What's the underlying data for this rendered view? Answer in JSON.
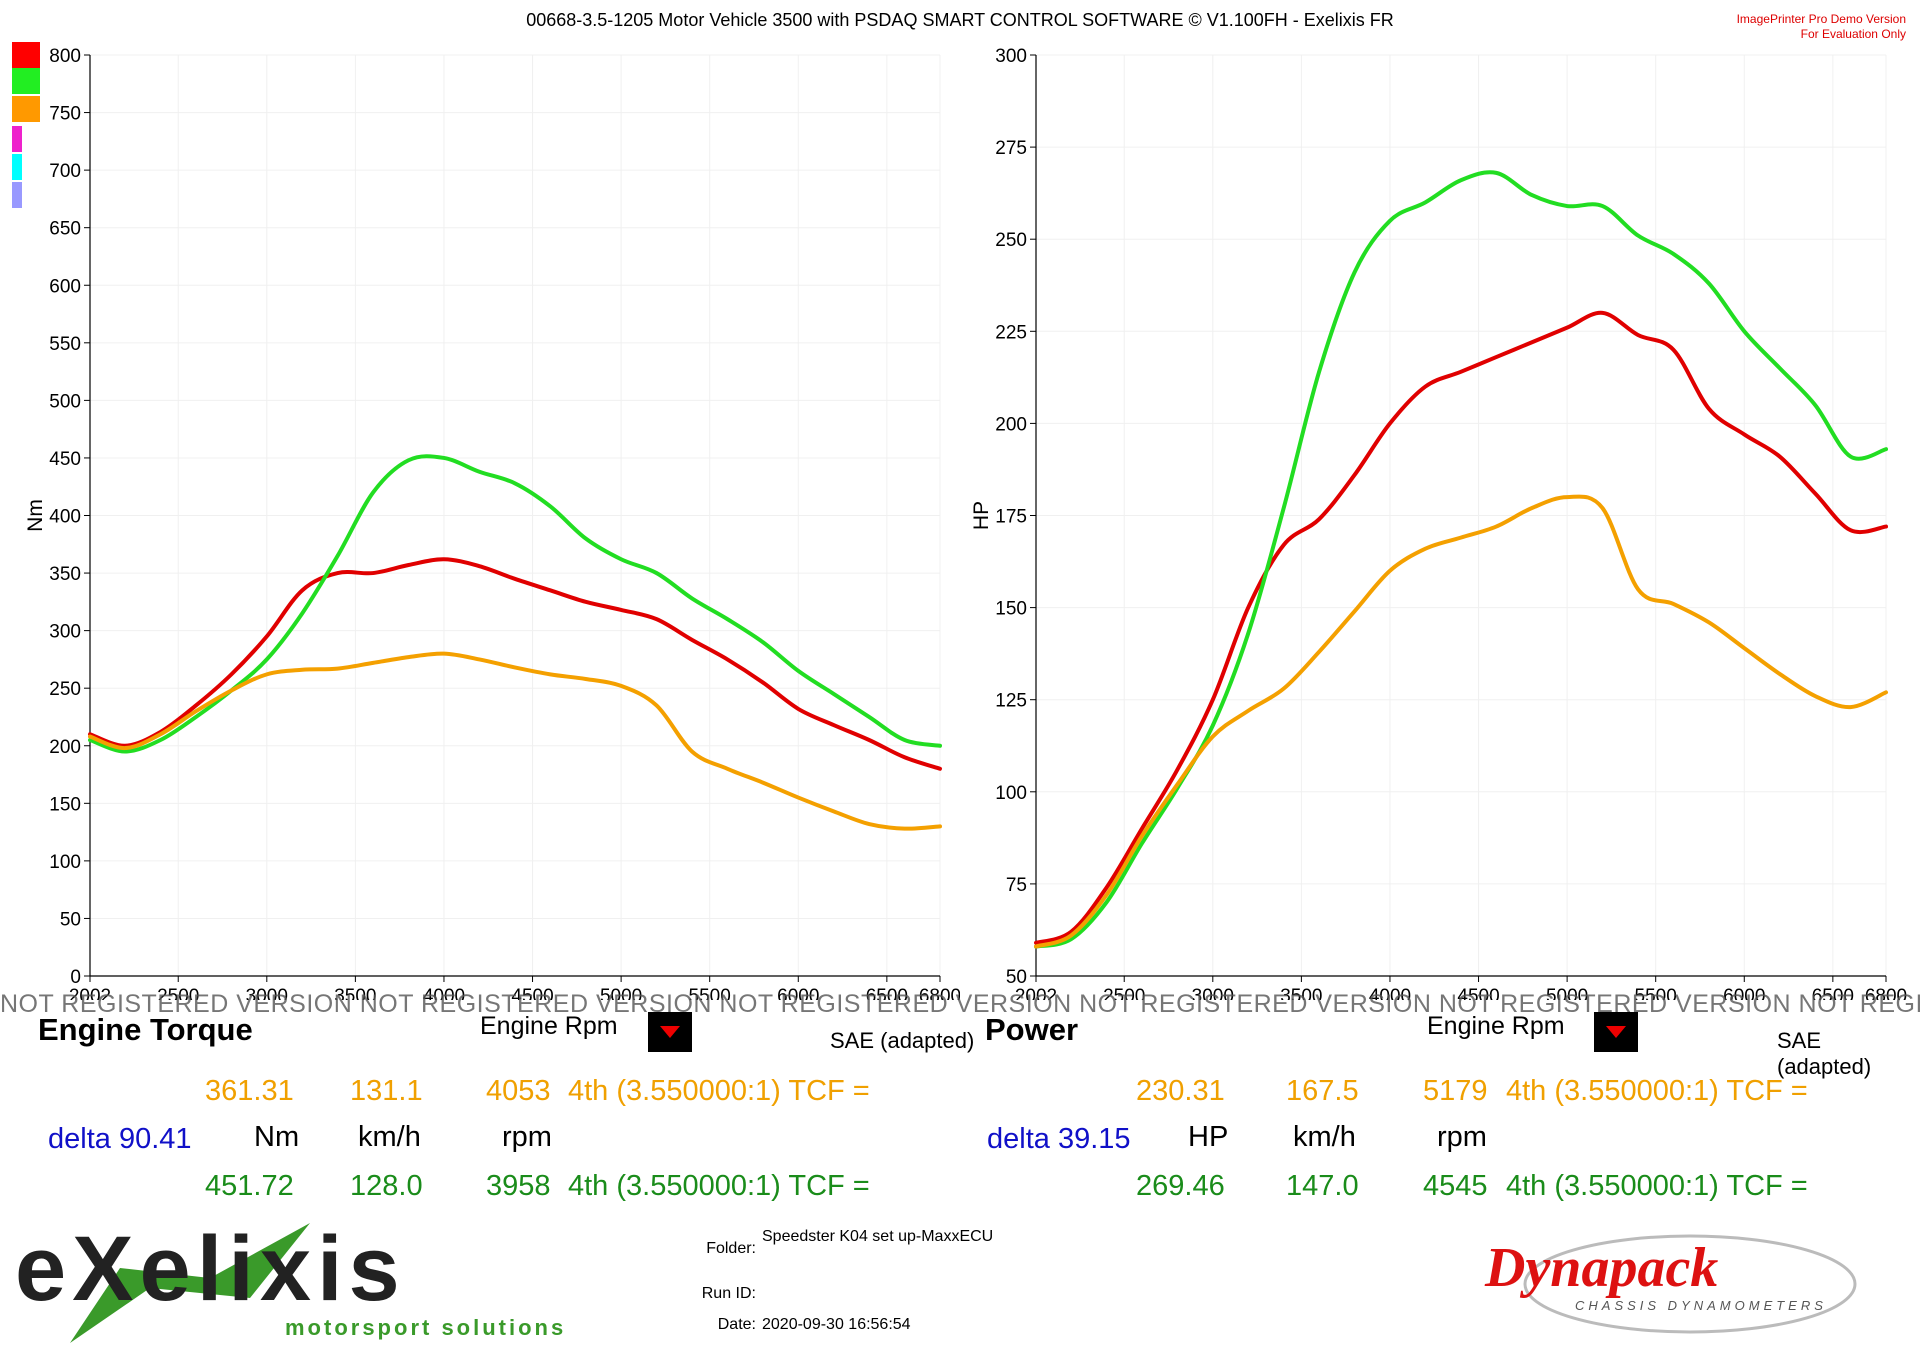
{
  "header": {
    "title": "00668-3.5-1205 Motor Vehicle 3500 with PSDAQ SMART CONTROL SOFTWARE © V1.100FH - Exelixis FR",
    "demo_line1": "ImagePrinter Pro Demo Version",
    "demo_line2": "For Evaluation Only"
  },
  "legend_colors": [
    "#ff0000",
    "#22ee22",
    "#ff9900",
    "#ee22cc",
    "#00ffff",
    "#9999ff"
  ],
  "watermark": "NOT REGISTERED VERSION NOT REGISTERED VERSION NOT REGISTERED VERSION NOT REGISTERED VERSION NOT REGISTERED VERSION NOT REGISTERED VERSION NOT REGISTERED V",
  "chart_data": [
    {
      "type": "line",
      "title": "Engine Torque",
      "xlabel": "Engine Rpm",
      "ylabel": "Nm",
      "xlim": [
        2002,
        6800
      ],
      "ylim": [
        0,
        800
      ],
      "x_ticks": [
        "2002",
        "2500",
        "3000",
        "3500",
        "4000",
        "4500",
        "5000",
        "5500",
        "6000",
        "6500",
        "6800"
      ],
      "x_tick_values": [
        2002,
        2500,
        3000,
        3500,
        4000,
        4500,
        5000,
        5500,
        6000,
        6500,
        6800
      ],
      "y_ticks": [
        0,
        50,
        100,
        150,
        200,
        250,
        300,
        350,
        400,
        450,
        500,
        550,
        600,
        650,
        700,
        750,
        800
      ],
      "grid": true,
      "series": [
        {
          "color": "#e00000",
          "x": [
            2002,
            2200,
            2400,
            2600,
            2800,
            3000,
            3200,
            3400,
            3600,
            3800,
            4000,
            4200,
            4400,
            4600,
            4800,
            5000,
            5200,
            5400,
            5600,
            5800,
            6000,
            6200,
            6400,
            6600,
            6800
          ],
          "values": [
            210,
            200,
            212,
            235,
            262,
            295,
            335,
            350,
            350,
            357,
            362,
            356,
            345,
            335,
            325,
            318,
            310,
            292,
            275,
            255,
            232,
            218,
            205,
            190,
            180
          ]
        },
        {
          "color": "#22dd22",
          "x": [
            2002,
            2200,
            2400,
            2600,
            2800,
            3000,
            3200,
            3400,
            3600,
            3800,
            4000,
            4200,
            4400,
            4600,
            4800,
            5000,
            5200,
            5400,
            5600,
            5800,
            6000,
            6200,
            6400,
            6600,
            6800
          ],
          "values": [
            205,
            195,
            205,
            225,
            248,
            275,
            315,
            365,
            420,
            448,
            450,
            438,
            428,
            408,
            380,
            362,
            350,
            328,
            310,
            290,
            265,
            245,
            225,
            205,
            200
          ]
        },
        {
          "color": "#f4a000",
          "x": [
            2002,
            2200,
            2400,
            2600,
            2800,
            3000,
            3200,
            3400,
            3600,
            3800,
            4000,
            4200,
            4400,
            4600,
            4800,
            5000,
            5200,
            5400,
            5600,
            5800,
            6000,
            6200,
            6400,
            6600,
            6800
          ],
          "values": [
            208,
            198,
            210,
            230,
            248,
            262,
            266,
            267,
            272,
            277,
            280,
            275,
            268,
            262,
            258,
            252,
            235,
            195,
            180,
            168,
            155,
            143,
            132,
            128,
            130
          ]
        }
      ],
      "readout": {
        "orange": {
          "value": "361.31",
          "speed": "131.1",
          "rpm": "4053",
          "gear": "4th (3.550000:1) TCF ="
        },
        "units": {
          "value": "Nm",
          "speed": "km/h",
          "rpm": "rpm"
        },
        "delta": "delta 90.41",
        "green": {
          "value": "451.72",
          "speed": "128.0",
          "rpm": "3958",
          "gear": "4th (3.550000:1) TCF ="
        },
        "sae": "SAE (adapted)"
      }
    },
    {
      "type": "line",
      "title": "Power",
      "xlabel": "Engine Rpm",
      "ylabel": "HP",
      "xlim": [
        2002,
        6800
      ],
      "ylim": [
        50,
        300
      ],
      "x_ticks": [
        "2002",
        "2500",
        "3000",
        "3500",
        "4000",
        "4500",
        "5000",
        "5500",
        "6000",
        "6500",
        "6800"
      ],
      "x_tick_values": [
        2002,
        2500,
        3000,
        3500,
        4000,
        4500,
        5000,
        5500,
        6000,
        6500,
        6800
      ],
      "y_ticks": [
        50,
        75,
        100,
        125,
        150,
        175,
        200,
        225,
        250,
        275,
        300
      ],
      "grid": true,
      "series": [
        {
          "color": "#e00000",
          "x": [
            2002,
            2200,
            2400,
            2600,
            2800,
            3000,
            3200,
            3400,
            3600,
            3800,
            4000,
            4200,
            4400,
            4600,
            4800,
            5000,
            5200,
            5400,
            5600,
            5800,
            6000,
            6200,
            6400,
            6600,
            6800
          ],
          "values": [
            59,
            62,
            74,
            90,
            106,
            125,
            150,
            167,
            174,
            186,
            200,
            210,
            214,
            218,
            222,
            226,
            230,
            224,
            220,
            204,
            197,
            191,
            181,
            171,
            172
          ]
        },
        {
          "color": "#22dd22",
          "x": [
            2002,
            2200,
            2400,
            2600,
            2800,
            3000,
            3200,
            3400,
            3600,
            3800,
            4000,
            4200,
            4400,
            4600,
            4800,
            5000,
            5200,
            5400,
            5600,
            5800,
            6000,
            6200,
            6400,
            6600,
            6800
          ],
          "values": [
            58,
            60,
            70,
            86,
            101,
            118,
            143,
            177,
            214,
            241,
            255,
            260,
            266,
            268,
            262,
            259,
            259,
            251,
            246,
            238,
            225,
            215,
            205,
            191,
            193
          ]
        },
        {
          "color": "#f4a000",
          "x": [
            2002,
            2200,
            2400,
            2600,
            2800,
            3000,
            3200,
            3400,
            3600,
            3800,
            4000,
            4200,
            4400,
            4600,
            4800,
            5000,
            5200,
            5400,
            5600,
            5800,
            6000,
            6200,
            6400,
            6600,
            6800
          ],
          "values": [
            58,
            61,
            72,
            88,
            102,
            115,
            122,
            128,
            138,
            149,
            160,
            166,
            169,
            172,
            177,
            180,
            177,
            155,
            151,
            146,
            139,
            132,
            126,
            123,
            127
          ]
        }
      ],
      "readout": {
        "orange": {
          "value": "230.31",
          "speed": "167.5",
          "rpm": "5179",
          "gear": "4th (3.550000:1) TCF ="
        },
        "units": {
          "value": "HP",
          "speed": "km/h",
          "rpm": "rpm"
        },
        "delta": "delta 39.15",
        "green": {
          "value": "269.46",
          "speed": "147.0",
          "rpm": "4545",
          "gear": "4th (3.550000:1) TCF ="
        },
        "sae": "SAE (adapted)"
      }
    }
  ],
  "meta": {
    "folder_label": "Folder:",
    "folder_value": "Speedster K04 set up-MaxxECU",
    "runid_label": "Run ID:",
    "date_label": "Date:",
    "date_value": "2020-09-30 16:56:54"
  },
  "logos": {
    "exelixis_main": "eXelixis",
    "exelixis_sub": "motorsport solutions",
    "dynapack_main": "Dynapack",
    "dynapack_sub": "CHASSIS DYNAMOMETERS"
  }
}
